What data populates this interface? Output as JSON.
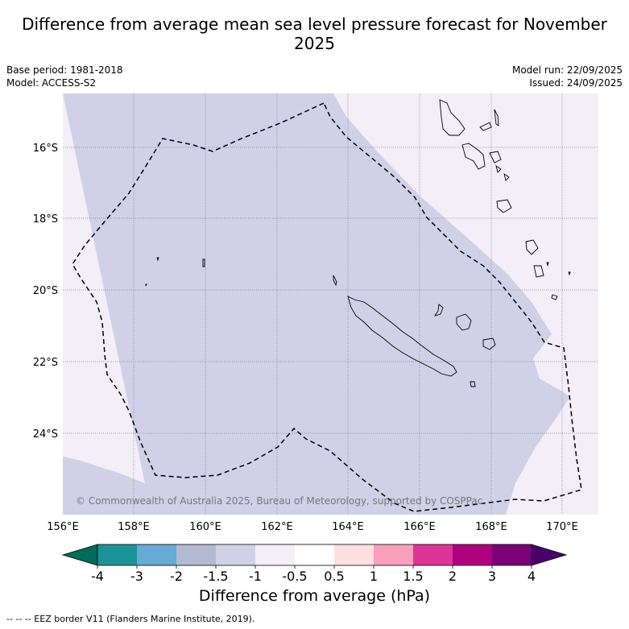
{
  "title": "Difference from average mean sea level pressure forecast for November 2025",
  "meta": {
    "base_period": "Base period: 1981-2018",
    "model": "Model: ACCESS-S2",
    "model_run": "Model run: 22/09/2025",
    "issued": "Issued: 24/09/2025"
  },
  "map": {
    "lon_range": [
      156,
      171
    ],
    "lat_range": [
      -26.0,
      -14.75
    ],
    "lon_ticks": [
      "156°E",
      "158°E",
      "160°E",
      "162°E",
      "164°E",
      "166°E",
      "168°E",
      "170°E"
    ],
    "lat_ticks": [
      "16°S",
      "18°S",
      "20°S",
      "22°S",
      "24°S"
    ],
    "copyright": "© Commonwealth of Australia 2025, Bureau of Meteorology, supported by COSPPac",
    "regions": [
      {
        "category": "-1.5 to -1",
        "color": "#d0d1e6"
      },
      {
        "category": "-1 to -0.5",
        "color": "#f4eef6"
      }
    ]
  },
  "colorbar": {
    "ticks": [
      "-4",
      "-3",
      "-2",
      "-1.5",
      "-1",
      "-0.5",
      "0.5",
      "1",
      "1.5",
      "2",
      "3",
      "4"
    ],
    "colors": [
      "#1b9298",
      "#67aad5",
      "#b4b9d2",
      "#d0d1e6",
      "#f4eef6",
      "#ffffff",
      "#fee0de",
      "#f99fbc",
      "#dd3497",
      "#ae017e",
      "#7a0177"
    ],
    "low_extend_color": "#016c59",
    "high_extend_color": "#49006a",
    "label": "Difference from average (hPa)"
  },
  "footnote": "-- -- -- EEZ border V11 (Flanders Marine Institute, 2019)."
}
